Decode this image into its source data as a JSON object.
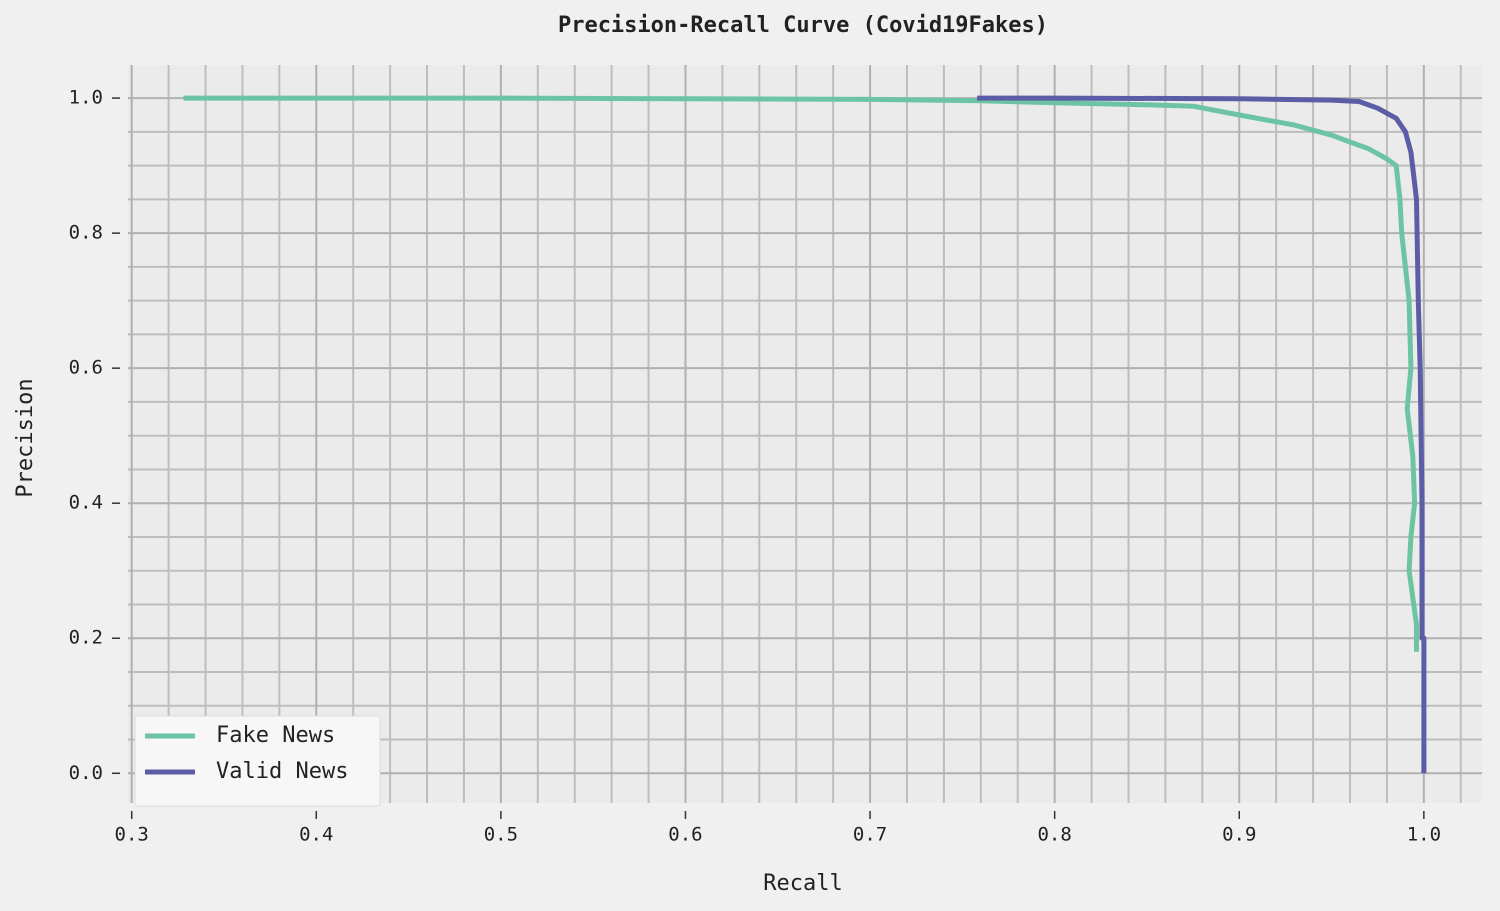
{
  "chart_data": {
    "type": "line",
    "title": "Precision-Recall Curve (Covid19Fakes)",
    "x_label": "Recall",
    "y_label": "Precision",
    "xlim": [
      0.298,
      1.0315
    ],
    "ylim": [
      -0.044,
      1.049
    ],
    "xticks": [
      0.3,
      0.4,
      0.5,
      0.6,
      0.7,
      0.8,
      0.9,
      {
        "value": 1,
        "label": "1.0"
      }
    ],
    "yticks": [
      {
        "value": 0,
        "label": "0.0"
      },
      0.2,
      0.4,
      0.6,
      0.8,
      {
        "value": 1,
        "label": "1.0"
      }
    ],
    "x_minor_ticks": [
      0.32,
      0.34,
      0.36,
      0.38,
      0.42,
      0.44,
      0.46,
      0.48,
      0.52,
      0.54,
      0.56,
      0.58,
      0.62,
      0.64,
      0.66,
      0.68,
      0.72,
      0.74,
      0.76,
      0.78,
      0.82,
      0.84,
      0.86,
      0.88,
      0.92,
      0.94,
      0.96,
      0.98,
      1.02
    ],
    "y_minor_ticks": [
      0.05,
      0.1,
      0.15,
      0.25,
      0.3,
      0.35,
      0.45,
      0.5,
      0.55,
      0.65,
      0.7,
      0.75,
      0.85,
      0.9,
      0.95
    ],
    "grid": true,
    "legend": "lower left",
    "series": [
      {
        "name": "Fake News",
        "color": "#6cc4a4",
        "x": [
          0.328,
          0.5,
          0.6,
          0.7,
          0.76,
          0.8,
          0.85,
          0.875,
          0.9,
          0.93,
          0.95,
          0.96,
          0.97,
          0.98,
          0.985,
          0.987,
          0.988,
          0.99,
          0.992,
          0.993,
          0.991,
          0.994,
          0.995,
          0.993,
          0.992,
          0.994,
          0.996,
          0.996
        ],
        "values": [
          1.0,
          1.0,
          0.999,
          0.998,
          0.996,
          0.993,
          0.99,
          0.988,
          0.975,
          0.96,
          0.945,
          0.935,
          0.925,
          0.91,
          0.9,
          0.85,
          0.8,
          0.75,
          0.7,
          0.6,
          0.54,
          0.47,
          0.4,
          0.35,
          0.3,
          0.26,
          0.22,
          0.18
        ]
      },
      {
        "name": "Valid News",
        "color": "#5b5ea6",
        "x": [
          0.758,
          0.8,
          0.9,
          0.95,
          0.965,
          0.975,
          0.985,
          0.99,
          0.993,
          0.996,
          0.997,
          0.998,
          0.999,
          0.999,
          1.0,
          1.0
        ],
        "values": [
          1.0,
          1.0,
          0.999,
          0.997,
          0.995,
          0.985,
          0.97,
          0.95,
          0.92,
          0.85,
          0.7,
          0.6,
          0.4,
          0.2,
          0.2,
          0.0
        ]
      }
    ]
  }
}
